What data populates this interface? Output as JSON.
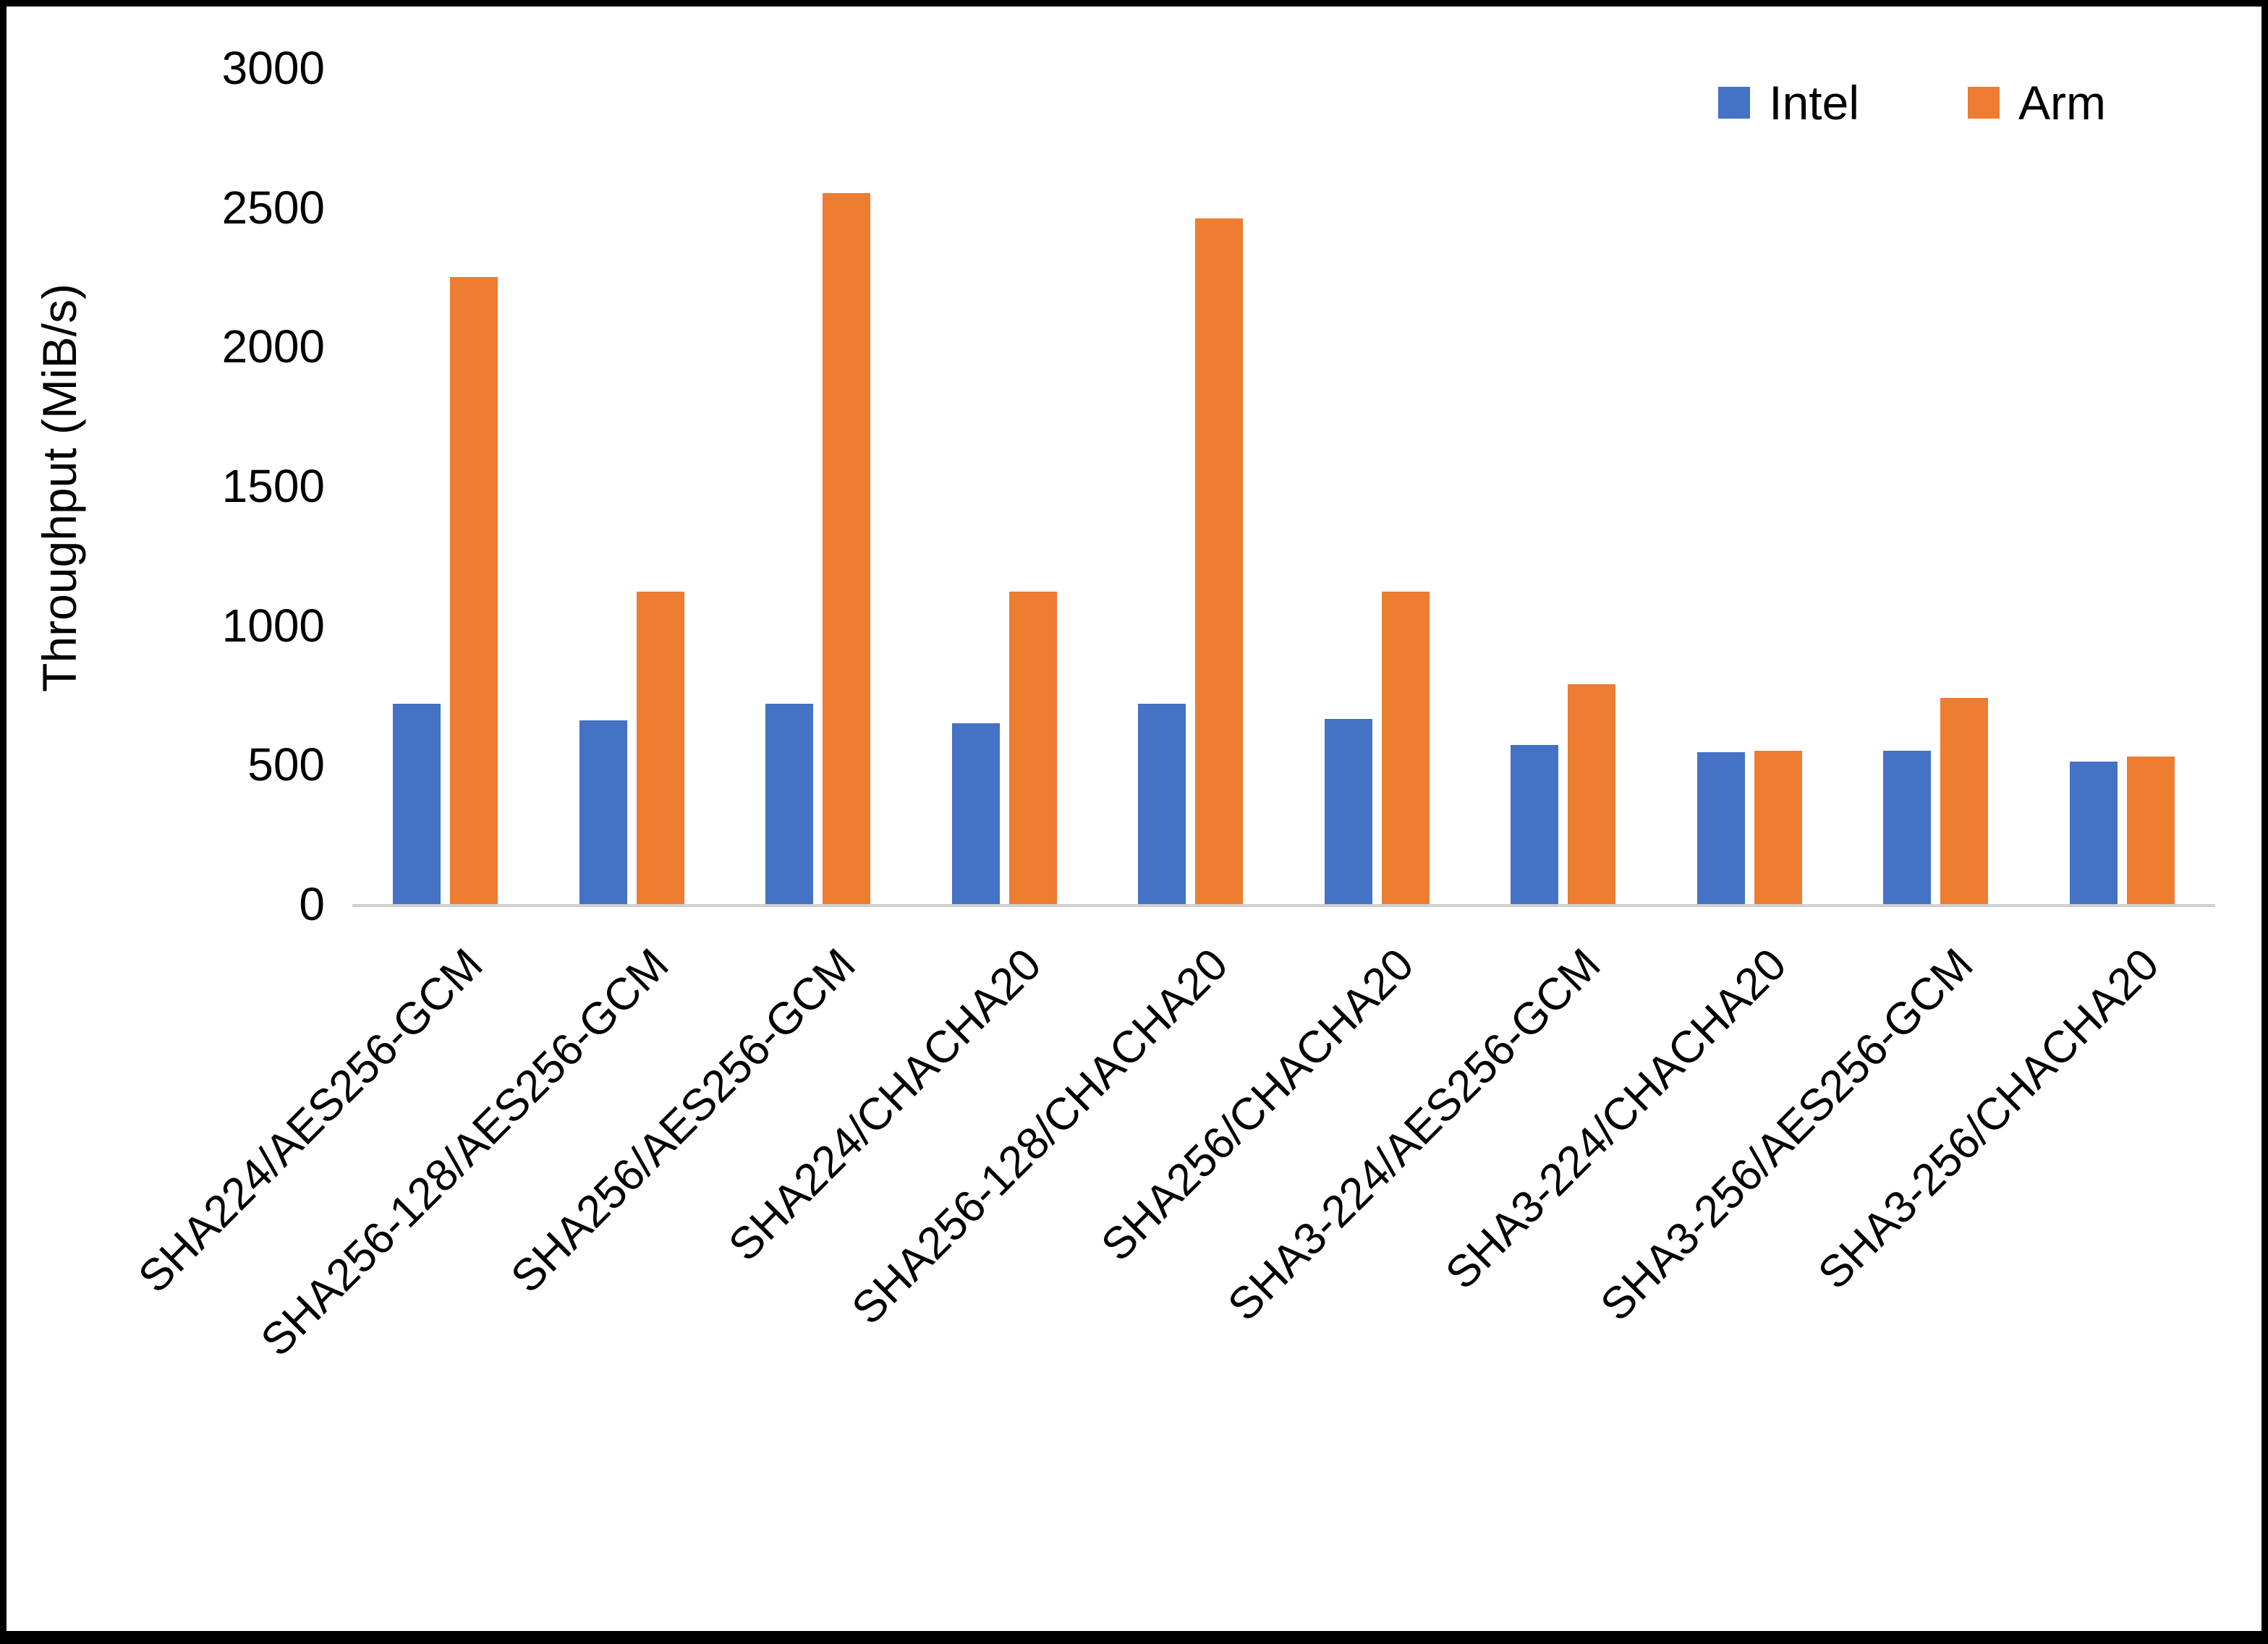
{
  "chart_data": {
    "type": "bar",
    "title": "",
    "xlabel": "",
    "ylabel": "Throughput (MiB/s)",
    "ylim": [
      0,
      3000
    ],
    "yticks": [
      0,
      500,
      1000,
      1500,
      2000,
      2500,
      3000
    ],
    "grid": false,
    "legend_position": "top-right",
    "categories": [
      "SHA224/AES256-GCM",
      "SHA256-128/AES256-GCM",
      "SHA256/AES256-GCM",
      "SHA224/CHACHA20",
      "SHA256-128/CHACHA20",
      "SHA256/CHACHA20",
      "SHA3-224/AES256-GCM",
      "SHA3-224/CHACHA20",
      "SHA3-256/AES256-GCM",
      "SHA3-256/CHACHA20"
    ],
    "series": [
      {
        "name": "Intel",
        "color": "#4472C4",
        "values": [
          720,
          660,
          720,
          650,
          720,
          665,
          570,
          545,
          550,
          510
        ]
      },
      {
        "name": "Arm",
        "color": "#ED7D31",
        "values": [
          2250,
          1120,
          2550,
          1120,
          2460,
          1120,
          790,
          550,
          740,
          530
        ]
      }
    ]
  }
}
